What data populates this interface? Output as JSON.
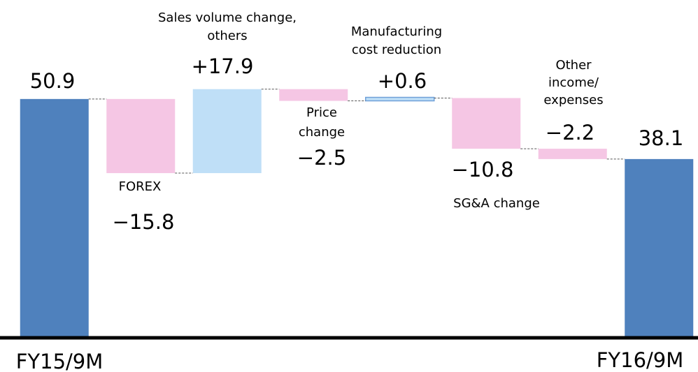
{
  "chart_data": {
    "type": "waterfall",
    "categories": [
      [
        "FY15/9M"
      ],
      [
        "FOREX"
      ],
      [
        "Sales volume change,",
        "others"
      ],
      [
        "Price",
        "change"
      ],
      [
        "Manufacturing",
        "cost reduction"
      ],
      [
        "SG&A change"
      ],
      [
        "Other",
        "income/",
        "expenses"
      ],
      [
        "FY16/9M"
      ]
    ],
    "values": [
      50.9,
      -15.8,
      17.9,
      -2.5,
      0.6,
      -10.8,
      -2.2,
      38.1
    ],
    "value_labels": [
      "50.9",
      "−15.8",
      "+17.9",
      "−2.5",
      "+0.6",
      "−10.8",
      "−2.2",
      "38.1"
    ],
    "ylim": [
      0,
      72
    ],
    "colors": {
      "total": "#4f81bd",
      "increase": "#bfdff7",
      "decrease": "#f5c6e4"
    }
  }
}
